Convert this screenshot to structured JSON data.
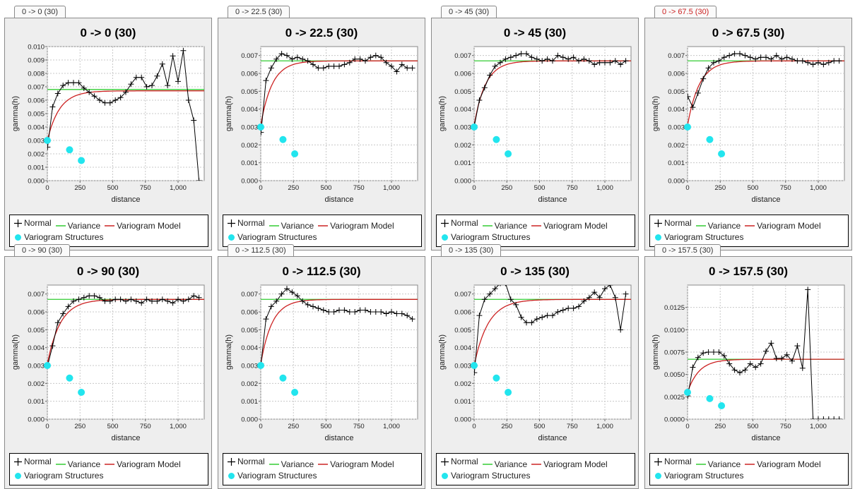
{
  "panels": [
    {
      "tab": "0 -> 0 (30)",
      "tab_color": "#333333"
    },
    {
      "tab": "0 -> 22.5 (30)",
      "tab_color": "#333333"
    },
    {
      "tab": "0 -> 45 (30)",
      "tab_color": "#333333"
    },
    {
      "tab": "0 -> 67.5 (30)",
      "tab_color": "#cc2222"
    },
    {
      "tab": "0 -> 90 (30)",
      "tab_color": "#333333"
    },
    {
      "tab": "0 -> 112.5 (30)",
      "tab_color": "#333333"
    },
    {
      "tab": "0 -> 135 (30)",
      "tab_color": "#333333"
    },
    {
      "tab": "0 -> 157.5 (30)",
      "tab_color": "#333333"
    }
  ],
  "legend": {
    "normal": "Normal",
    "variance": "Variance",
    "model": "Variogram Model",
    "structures": "Variogram Structures"
  },
  "colors": {
    "normal": "#000000",
    "variance": "#33cc33",
    "model": "#cc2222",
    "structures": "#22e5ee",
    "plot_bg": "#ffffff",
    "panel_bg": "#eeeeee",
    "grid": "#c8c8c8"
  },
  "chart_data": [
    {
      "type": "line",
      "title": "0 -> 0 (30)",
      "xlabel": "distance",
      "ylabel": "gamma(h)",
      "xlim": [
        0,
        1200
      ],
      "ylim": [
        0,
        0.01
      ],
      "xticks": [
        0,
        250,
        500,
        750,
        1000
      ],
      "xtick_labels": [
        "0",
        "250",
        "500",
        "750",
        "1,000"
      ],
      "yticks": [
        0,
        0.001,
        0.002,
        0.003,
        0.004,
        0.005,
        0.006,
        0.007,
        0.008,
        0.009,
        0.01
      ],
      "ytick_labels": [
        "0.000",
        "0.001",
        "0.002",
        "0.003",
        "0.004",
        "0.005",
        "0.006",
        "0.007",
        "0.008",
        "0.009",
        "0.010"
      ],
      "variance": 0.0068,
      "model_sill": 0.0067,
      "model_nugget": 0.003,
      "model_range": 280,
      "normal": {
        "x": [
          2,
          40,
          80,
          120,
          160,
          200,
          240,
          280,
          320,
          360,
          400,
          440,
          480,
          520,
          560,
          600,
          640,
          680,
          720,
          760,
          800,
          840,
          880,
          920,
          960,
          1000,
          1040,
          1080,
          1120,
          1160
        ],
        "y": [
          0.0025,
          0.0055,
          0.0065,
          0.0071,
          0.0073,
          0.0073,
          0.0073,
          0.0069,
          0.0066,
          0.0063,
          0.006,
          0.0058,
          0.0058,
          0.006,
          0.0062,
          0.0066,
          0.0072,
          0.0077,
          0.0077,
          0.007,
          0.0071,
          0.0078,
          0.0087,
          0.0071,
          0.0093,
          0.0074,
          0.0097,
          0.006,
          0.0045,
          0.0
        ]
      },
      "structures": {
        "x": [
          0,
          170,
          260
        ],
        "y": [
          0.003,
          0.0023,
          0.0015
        ]
      }
    },
    {
      "type": "line",
      "title": "0 -> 22.5 (30)",
      "xlabel": "distance",
      "ylabel": "gamma(h)",
      "xlim": [
        0,
        1200
      ],
      "ylim": [
        0,
        0.0075
      ],
      "xticks": [
        0,
        250,
        500,
        750,
        1000
      ],
      "xtick_labels": [
        "0",
        "250",
        "500",
        "750",
        "1,000"
      ],
      "yticks": [
        0,
        0.001,
        0.002,
        0.003,
        0.004,
        0.005,
        0.006,
        0.007
      ],
      "ytick_labels": [
        "0.000",
        "0.001",
        "0.002",
        "0.003",
        "0.004",
        "0.005",
        "0.006",
        "0.007"
      ],
      "variance": 0.0067,
      "model_sill": 0.0067,
      "model_nugget": 0.0031,
      "model_range": 260,
      "normal": {
        "x": [
          2,
          40,
          80,
          120,
          160,
          200,
          240,
          280,
          320,
          360,
          400,
          440,
          480,
          520,
          560,
          600,
          640,
          680,
          720,
          760,
          800,
          840,
          880,
          920,
          960,
          1000,
          1040,
          1080,
          1120,
          1160
        ],
        "y": [
          0.0027,
          0.0056,
          0.0063,
          0.0068,
          0.0071,
          0.007,
          0.0068,
          0.0069,
          0.0068,
          0.0067,
          0.0065,
          0.0063,
          0.0063,
          0.0064,
          0.0064,
          0.0064,
          0.0065,
          0.0066,
          0.0068,
          0.0068,
          0.0067,
          0.0069,
          0.007,
          0.0069,
          0.0066,
          0.0064,
          0.0061,
          0.0065,
          0.0063,
          0.0063
        ]
      },
      "structures": {
        "x": [
          0,
          170,
          260
        ],
        "y": [
          0.003,
          0.0023,
          0.0015
        ]
      }
    },
    {
      "type": "line",
      "title": "0 -> 45 (30)",
      "xlabel": "distance",
      "ylabel": "gamma(h)",
      "xlim": [
        0,
        1200
      ],
      "ylim": [
        0,
        0.0075
      ],
      "xticks": [
        0,
        250,
        500,
        750,
        1000
      ],
      "xtick_labels": [
        "0",
        "250",
        "500",
        "750",
        "1,000"
      ],
      "yticks": [
        0,
        0.001,
        0.002,
        0.003,
        0.004,
        0.005,
        0.006,
        0.007
      ],
      "ytick_labels": [
        "0.000",
        "0.001",
        "0.002",
        "0.003",
        "0.004",
        "0.005",
        "0.006",
        "0.007"
      ],
      "variance": 0.0067,
      "model_sill": 0.0067,
      "model_nugget": 0.0031,
      "model_range": 260,
      "normal": {
        "x": [
          2,
          40,
          80,
          120,
          160,
          200,
          240,
          280,
          320,
          360,
          400,
          440,
          480,
          520,
          560,
          600,
          640,
          680,
          720,
          760,
          800,
          840,
          880,
          920,
          960,
          1000,
          1040,
          1080,
          1120,
          1160
        ],
        "y": [
          0.0031,
          0.0045,
          0.0052,
          0.0059,
          0.0064,
          0.0066,
          0.0068,
          0.0069,
          0.007,
          0.0071,
          0.0071,
          0.0069,
          0.0068,
          0.0067,
          0.0068,
          0.0067,
          0.007,
          0.0069,
          0.0068,
          0.0069,
          0.0067,
          0.0068,
          0.0067,
          0.0065,
          0.0066,
          0.0066,
          0.0066,
          0.0067,
          0.0065,
          0.0067
        ]
      },
      "structures": {
        "x": [
          0,
          170,
          260
        ],
        "y": [
          0.003,
          0.0023,
          0.0015
        ]
      }
    },
    {
      "type": "line",
      "title": "0 -> 67.5 (30)",
      "xlabel": "distance",
      "ylabel": "gamma(h)",
      "xlim": [
        0,
        1200
      ],
      "ylim": [
        0,
        0.0075
      ],
      "xticks": [
        0,
        250,
        500,
        750,
        1000
      ],
      "xtick_labels": [
        "0",
        "250",
        "500",
        "750",
        "1,000"
      ],
      "yticks": [
        0,
        0.001,
        0.002,
        0.003,
        0.004,
        0.005,
        0.006,
        0.007
      ],
      "ytick_labels": [
        "0.000",
        "0.001",
        "0.002",
        "0.003",
        "0.004",
        "0.005",
        "0.006",
        "0.007"
      ],
      "variance": 0.0067,
      "model_sill": 0.0067,
      "model_nugget": 0.0031,
      "model_range": 270,
      "normal": {
        "x": [
          2,
          40,
          80,
          120,
          160,
          200,
          240,
          280,
          320,
          360,
          400,
          440,
          480,
          520,
          560,
          600,
          640,
          680,
          720,
          760,
          800,
          840,
          880,
          920,
          960,
          1000,
          1040,
          1080,
          1120,
          1160
        ],
        "y": [
          0.0047,
          0.0041,
          0.0049,
          0.0057,
          0.0063,
          0.0066,
          0.0067,
          0.0069,
          0.007,
          0.0071,
          0.0071,
          0.007,
          0.0069,
          0.0068,
          0.0069,
          0.0069,
          0.0068,
          0.007,
          0.0068,
          0.0069,
          0.0068,
          0.0067,
          0.0067,
          0.0066,
          0.0065,
          0.0066,
          0.0065,
          0.0066,
          0.0067,
          0.0067
        ]
      },
      "structures": {
        "x": [
          0,
          170,
          260
        ],
        "y": [
          0.003,
          0.0023,
          0.0015
        ]
      }
    },
    {
      "type": "line",
      "title": "0 -> 90 (30)",
      "xlabel": "distance",
      "ylabel": "gamma(h)",
      "xlim": [
        0,
        1200
      ],
      "ylim": [
        0,
        0.0075
      ],
      "xticks": [
        0,
        250,
        500,
        750,
        1000
      ],
      "xtick_labels": [
        "0",
        "250",
        "500",
        "750",
        "1,000"
      ],
      "yticks": [
        0,
        0.001,
        0.002,
        0.003,
        0.004,
        0.005,
        0.006,
        0.007
      ],
      "ytick_labels": [
        "0.000",
        "0.001",
        "0.002",
        "0.003",
        "0.004",
        "0.005",
        "0.006",
        "0.007"
      ],
      "variance": 0.0067,
      "model_sill": 0.0067,
      "model_nugget": 0.0031,
      "model_range": 300,
      "normal": {
        "x": [
          2,
          40,
          80,
          120,
          160,
          200,
          240,
          280,
          320,
          360,
          400,
          440,
          480,
          520,
          560,
          600,
          640,
          680,
          720,
          760,
          800,
          840,
          880,
          920,
          960,
          1000,
          1040,
          1080,
          1120,
          1160
        ],
        "y": [
          0.003,
          0.0041,
          0.0054,
          0.0059,
          0.0063,
          0.0066,
          0.0067,
          0.0068,
          0.0069,
          0.0069,
          0.0068,
          0.0066,
          0.0066,
          0.0067,
          0.0067,
          0.0066,
          0.0067,
          0.0066,
          0.0065,
          0.0067,
          0.0066,
          0.0066,
          0.0067,
          0.0066,
          0.0065,
          0.0067,
          0.0066,
          0.0067,
          0.0069,
          0.0068
        ]
      },
      "structures": {
        "x": [
          0,
          170,
          260
        ],
        "y": [
          0.003,
          0.0023,
          0.0015
        ]
      }
    },
    {
      "type": "line",
      "title": "0 -> 112.5 (30)",
      "xlabel": "distance",
      "ylabel": "gamma(h)",
      "xlim": [
        0,
        1200
      ],
      "ylim": [
        0,
        0.0075
      ],
      "xticks": [
        0,
        250,
        500,
        750,
        1000
      ],
      "xtick_labels": [
        "0",
        "250",
        "500",
        "750",
        "1,000"
      ],
      "yticks": [
        0,
        0.001,
        0.002,
        0.003,
        0.004,
        0.005,
        0.006,
        0.007
      ],
      "ytick_labels": [
        "0.000",
        "0.001",
        "0.002",
        "0.003",
        "0.004",
        "0.005",
        "0.006",
        "0.007"
      ],
      "variance": 0.0067,
      "model_sill": 0.0067,
      "model_nugget": 0.0031,
      "model_range": 260,
      "normal": {
        "x": [
          2,
          40,
          80,
          120,
          160,
          200,
          240,
          280,
          320,
          360,
          400,
          440,
          480,
          520,
          560,
          600,
          640,
          680,
          720,
          760,
          800,
          840,
          880,
          920,
          960,
          1000,
          1040,
          1080,
          1120,
          1160
        ],
        "y": [
          0.0031,
          0.0056,
          0.0063,
          0.0066,
          0.007,
          0.0073,
          0.0071,
          0.0069,
          0.0066,
          0.0064,
          0.0063,
          0.0062,
          0.0061,
          0.006,
          0.006,
          0.0061,
          0.0061,
          0.006,
          0.006,
          0.0061,
          0.0061,
          0.006,
          0.006,
          0.006,
          0.0059,
          0.006,
          0.0059,
          0.0059,
          0.0058,
          0.0056
        ]
      },
      "structures": {
        "x": [
          0,
          170,
          260
        ],
        "y": [
          0.003,
          0.0023,
          0.0015
        ]
      }
    },
    {
      "type": "line",
      "title": "0 -> 135 (30)",
      "xlabel": "distance",
      "ylabel": "gamma(h)",
      "xlim": [
        0,
        1200
      ],
      "ylim": [
        0,
        0.0075
      ],
      "xticks": [
        0,
        250,
        500,
        750,
        1000
      ],
      "xtick_labels": [
        "0",
        "250",
        "500",
        "750",
        "1,000"
      ],
      "yticks": [
        0,
        0.001,
        0.002,
        0.003,
        0.004,
        0.005,
        0.006,
        0.007
      ],
      "ytick_labels": [
        "0.000",
        "0.001",
        "0.002",
        "0.003",
        "0.004",
        "0.005",
        "0.006",
        "0.007"
      ],
      "variance": 0.0067,
      "model_sill": 0.0067,
      "model_nugget": 0.003,
      "model_range": 320,
      "normal": {
        "x": [
          2,
          40,
          80,
          120,
          160,
          200,
          240,
          280,
          320,
          360,
          400,
          440,
          480,
          520,
          560,
          600,
          640,
          680,
          720,
          760,
          800,
          840,
          880,
          920,
          960,
          1000,
          1040,
          1080,
          1120,
          1160
        ],
        "y": [
          0.0026,
          0.0058,
          0.0067,
          0.007,
          0.0073,
          0.0076,
          0.0076,
          0.0067,
          0.0064,
          0.0057,
          0.0054,
          0.0054,
          0.0056,
          0.0057,
          0.0058,
          0.0058,
          0.006,
          0.0061,
          0.0062,
          0.0062,
          0.0063,
          0.0066,
          0.0068,
          0.0071,
          0.0068,
          0.0073,
          0.0075,
          0.0068,
          0.005,
          0.007
        ]
      },
      "structures": {
        "x": [
          0,
          170,
          260
        ],
        "y": [
          0.003,
          0.0023,
          0.0015
        ]
      }
    },
    {
      "type": "line",
      "title": "0 -> 157.5 (30)",
      "xlabel": "distance",
      "ylabel": "gamma(h)",
      "xlim": [
        0,
        1200
      ],
      "ylim": [
        0,
        0.015
      ],
      "xticks": [
        0,
        250,
        500,
        750,
        1000
      ],
      "xtick_labels": [
        "0",
        "250",
        "500",
        "750",
        "1,000"
      ],
      "yticks": [
        0,
        0.0025,
        0.005,
        0.0075,
        0.01,
        0.0125
      ],
      "ytick_labels": [
        "0.0000",
        "0.0025",
        "0.0050",
        "0.0075",
        "0.0100",
        "0.0125"
      ],
      "variance": 0.0067,
      "model_sill": 0.0067,
      "model_nugget": 0.003,
      "model_range": 260,
      "normal": {
        "x": [
          2,
          40,
          80,
          120,
          160,
          200,
          240,
          280,
          320,
          360,
          400,
          440,
          480,
          520,
          560,
          600,
          640,
          680,
          720,
          760,
          800,
          840,
          880,
          920,
          960,
          1000,
          1040,
          1080,
          1120,
          1160
        ],
        "y": [
          0.0026,
          0.0058,
          0.0069,
          0.0074,
          0.0075,
          0.0075,
          0.0075,
          0.0071,
          0.0062,
          0.0055,
          0.0052,
          0.0055,
          0.0062,
          0.0058,
          0.0062,
          0.0076,
          0.0085,
          0.0068,
          0.0068,
          0.0072,
          0.0065,
          0.0082,
          0.0057,
          0.0145,
          0.0,
          0.0,
          0.0,
          0.0,
          0.0,
          0.0
        ]
      },
      "structures": {
        "x": [
          0,
          170,
          260
        ],
        "y": [
          0.003,
          0.0023,
          0.0015
        ]
      }
    }
  ]
}
